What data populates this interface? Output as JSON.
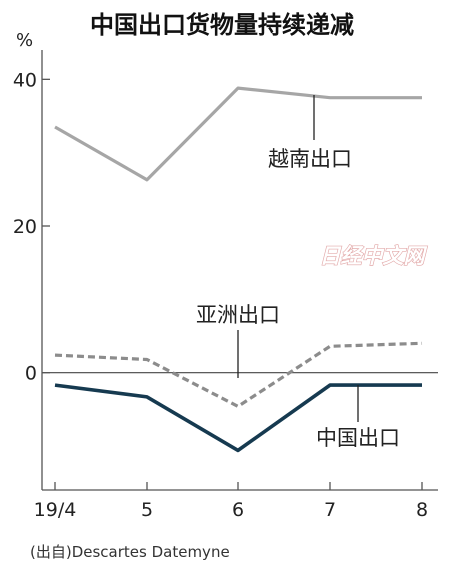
{
  "chart_data": {
    "type": "line",
    "title": "中国出口货物量持续递减",
    "unit": "%",
    "categories": [
      "19/4",
      "5",
      "6",
      "7",
      "8"
    ],
    "yticks": [
      0,
      20,
      40
    ],
    "ylim": [
      -16,
      44
    ],
    "series": [
      {
        "name": "越南出口",
        "values": [
          33.5,
          26.3,
          38.8,
          37.5,
          37.5
        ],
        "color": "#a6a6a6",
        "style": "solid"
      },
      {
        "name": "亚洲出口",
        "values": [
          2.4,
          1.8,
          -4.6,
          3.6,
          4.0
        ],
        "color": "#8c8c8c",
        "style": "dashed"
      },
      {
        "name": "中国出口",
        "values": [
          -1.7,
          -3.3,
          -10.6,
          -1.7,
          -1.7
        ],
        "color": "#163a50",
        "style": "solid"
      }
    ],
    "grid": false,
    "zero_line": true,
    "source": "(出自)Descartes Datemyne",
    "watermark": "日经中文网"
  }
}
